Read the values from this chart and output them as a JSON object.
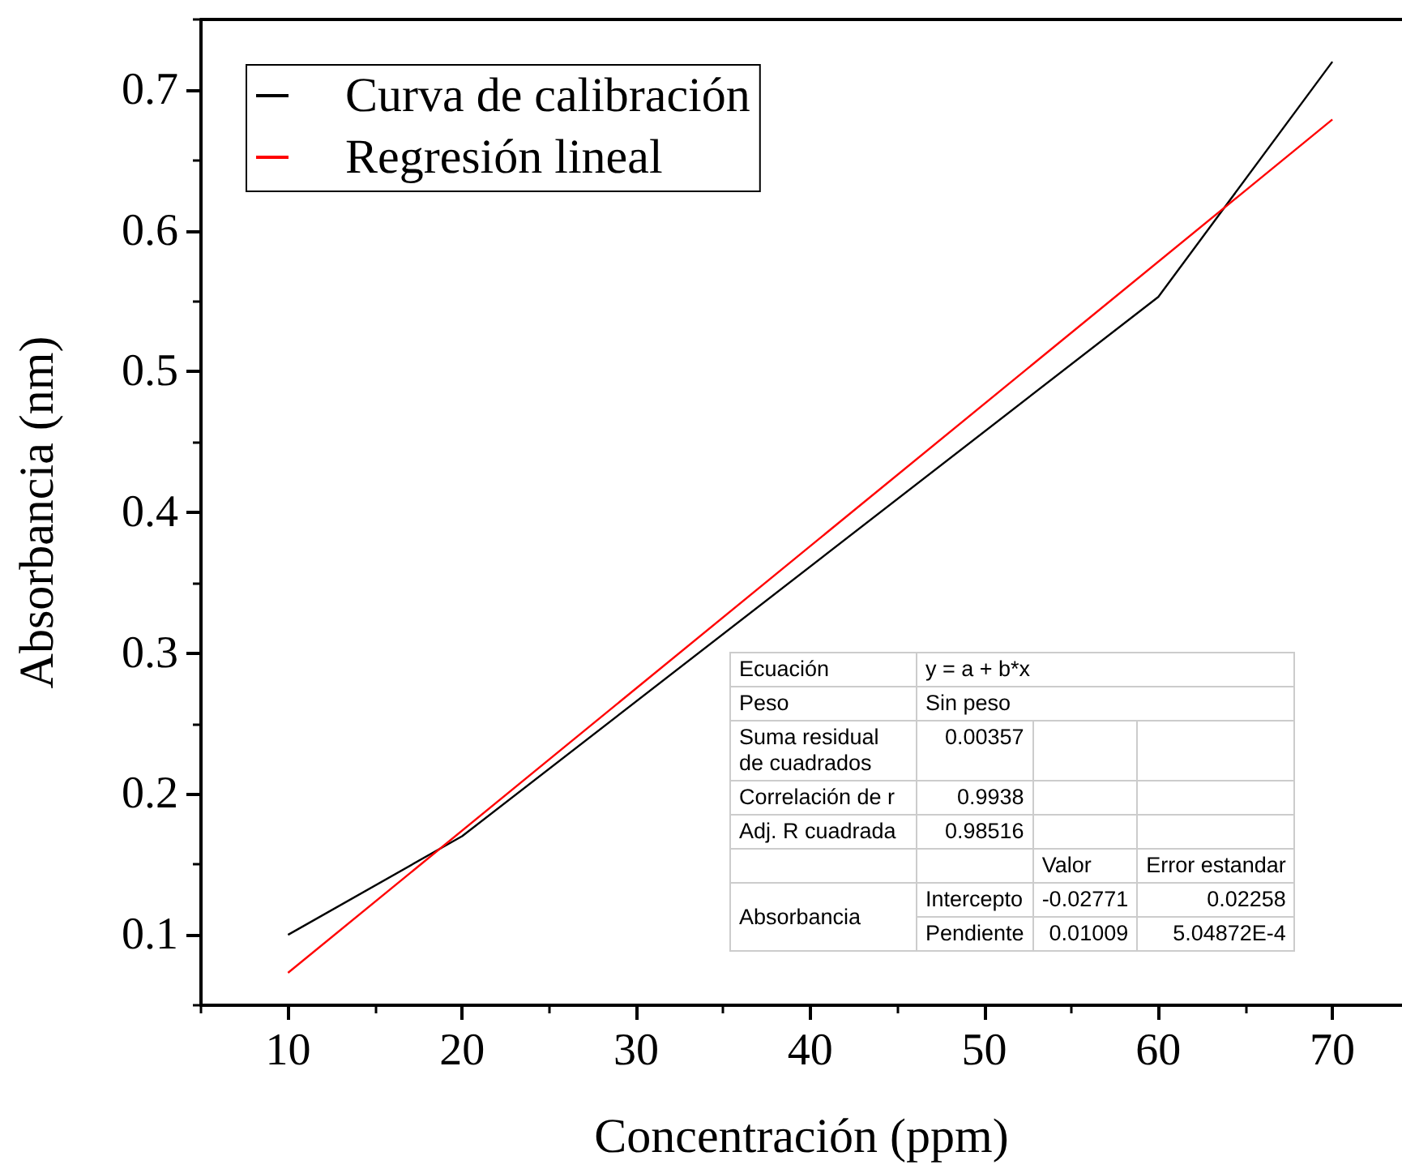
{
  "chart_data": {
    "type": "line",
    "xlabel": "Concentración (ppm)",
    "ylabel": "Absorbancia (nm)",
    "xlim": [
      5,
      74
    ],
    "xticks": [
      10,
      20,
      30,
      40,
      50,
      60,
      70
    ],
    "ylim": [
      0.05,
      0.75
    ],
    "yticks": [
      0.1,
      0.2,
      0.3,
      0.4,
      0.5,
      0.6,
      0.7
    ],
    "series": [
      {
        "name": "Curva de calibración",
        "color": "#000000",
        "x": [
          10,
          20,
          60,
          70
        ],
        "values": [
          0.1,
          0.17,
          0.553,
          0.72
        ]
      },
      {
        "name": "Regresión lineal",
        "color": "#ff0000",
        "x": [
          10,
          70
        ],
        "values": [
          0.073,
          0.679
        ]
      }
    ],
    "legend": "top left",
    "grid": false,
    "marker": "none",
    "line_style": "solid",
    "annotations": [
      "Ecuación",
      "y = a + b*x",
      "Peso",
      "Sin peso",
      "Suma residual de cuadrados",
      "0.00357",
      "Correlación de r",
      "0.9938",
      "Adj. R cuadrada",
      "0.98516",
      "Valor",
      "Error estandar",
      "Absorbancia",
      "Intercepto",
      "-0.02771",
      "0.02258",
      "Pendiente",
      "0.01009",
      "5.04872E-4"
    ]
  }
}
